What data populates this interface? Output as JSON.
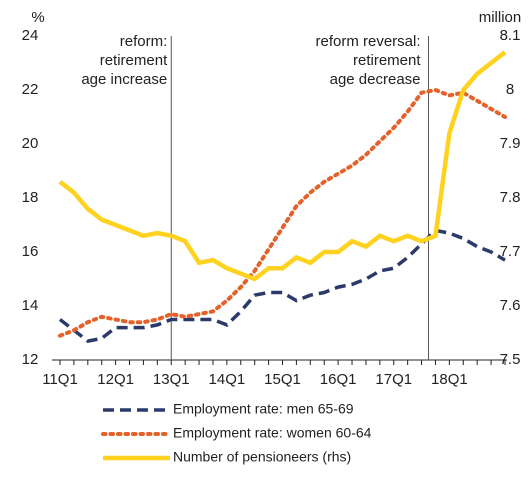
{
  "chart_data": {
    "type": "line",
    "y_unit": "%",
    "y2_unit": "million",
    "categories": [
      "11Q1",
      null,
      null,
      null,
      "12Q1",
      null,
      null,
      null,
      "13Q1",
      null,
      null,
      null,
      "14Q1",
      null,
      null,
      null,
      "15Q1",
      null,
      null,
      null,
      "16Q1",
      null,
      null,
      null,
      "17Q1",
      null,
      null,
      null,
      "18Q1",
      null,
      null,
      null,
      null
    ],
    "series": [
      {
        "name": "Employment rate: men 65-69",
        "color": "#2b3a6b",
        "style": "dashed",
        "values": [
          13.5,
          13.1,
          12.7,
          12.8,
          13.2,
          13.2,
          13.2,
          13.3,
          13.5,
          13.5,
          13.5,
          13.5,
          13.3,
          13.8,
          14.4,
          14.5,
          14.5,
          14.2,
          14.4,
          14.5,
          14.7,
          14.8,
          15.0,
          15.3,
          15.4,
          15.8,
          16.3,
          16.8,
          16.7,
          16.5,
          16.2,
          16.0,
          15.7
        ]
      },
      {
        "name": "Employment rate: women 60-64",
        "color": "#e4622a",
        "style": "dotted",
        "values": [
          12.9,
          13.1,
          13.4,
          13.6,
          13.5,
          13.4,
          13.4,
          13.5,
          13.7,
          13.6,
          13.7,
          13.8,
          14.2,
          14.7,
          15.3,
          16.1,
          16.9,
          17.7,
          18.2,
          18.6,
          18.9,
          19.2,
          19.6,
          20.1,
          20.6,
          21.2,
          21.9,
          22.0,
          21.8,
          21.9,
          21.6,
          21.3,
          21.0
        ]
      },
      {
        "name": "Number of pensioneers (rhs)",
        "color": "#ffd21f",
        "style": "solid",
        "axis": "y2",
        "values": [
          7.83,
          7.81,
          7.78,
          7.76,
          7.75,
          7.74,
          7.73,
          7.735,
          7.73,
          7.72,
          7.68,
          7.685,
          7.67,
          7.66,
          7.65,
          7.67,
          7.67,
          7.69,
          7.68,
          7.7,
          7.7,
          7.72,
          7.71,
          7.73,
          7.72,
          7.73,
          7.72,
          7.73,
          7.92,
          8.0,
          8.03,
          8.05,
          8.07
        ]
      }
    ],
    "ylim": [
      12,
      24
    ],
    "yticks": [
      12,
      14,
      16,
      18,
      20,
      22,
      24
    ],
    "y2lim": [
      7.5,
      8.1
    ],
    "y2ticks": [
      7.5,
      7.6,
      7.7,
      7.8,
      7.9,
      8,
      8.1
    ],
    "annotations": [
      {
        "lines": [
          "reform:",
          "retirement",
          "age increase"
        ]
      },
      {
        "lines": [
          "reform  reversal:",
          "retirement",
          "age decrease"
        ]
      }
    ],
    "grid": false
  }
}
